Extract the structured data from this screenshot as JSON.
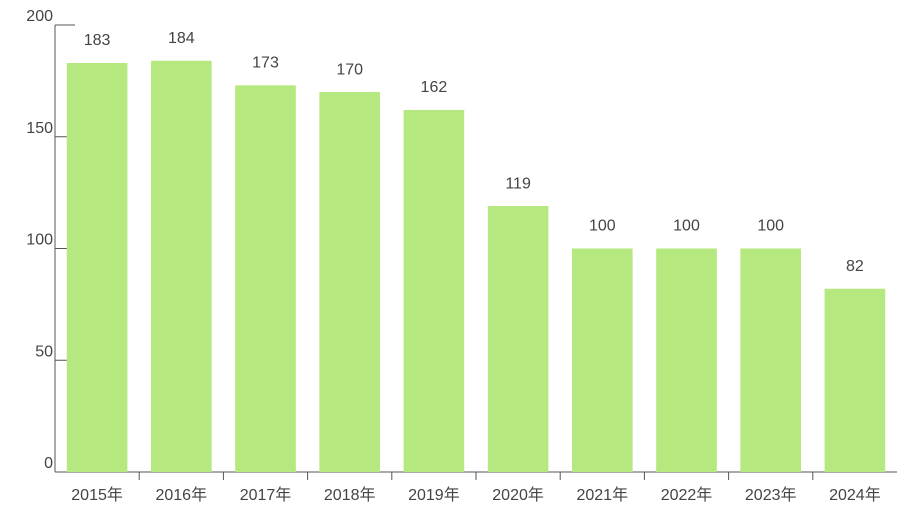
{
  "chart_data": {
    "type": "bar",
    "categories": [
      "2015年",
      "2016年",
      "2017年",
      "2018年",
      "2019年",
      "2020年",
      "2021年",
      "2022年",
      "2023年",
      "2024年"
    ],
    "values": [
      183,
      184,
      173,
      170,
      162,
      119,
      100,
      100,
      100,
      82
    ],
    "color": "#b5e87e",
    "ylim": [
      0,
      200
    ],
    "yticks": [
      0,
      50,
      100,
      150,
      200
    ],
    "grid": false
  }
}
